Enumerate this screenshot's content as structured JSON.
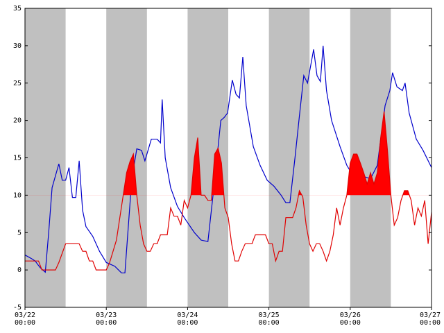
{
  "chart_data": {
    "type": "line",
    "xlim": [
      0,
      120
    ],
    "ylim": [
      -5,
      35
    ],
    "yticks": [
      -5,
      0,
      5,
      10,
      15,
      20,
      25,
      30,
      35
    ],
    "xticks": [
      {
        "value": 0,
        "label": "03/22 00:00"
      },
      {
        "value": 24,
        "label": "03/23 00:00"
      },
      {
        "value": 48,
        "label": "03/24 00:00"
      },
      {
        "value": 72,
        "label": "03/25 00:00"
      },
      {
        "value": 96,
        "label": "03/26 00:00"
      },
      {
        "value": 120,
        "label": "03/27 00:00"
      }
    ],
    "bands": [
      [
        0,
        12
      ],
      [
        24,
        36
      ],
      [
        48,
        60
      ],
      [
        72,
        84
      ],
      [
        96,
        108
      ]
    ],
    "band_color": "#c0c0c0",
    "fill_threshold": 10,
    "fill_color": "#ff0000",
    "series": [
      {
        "color": "#0000cc",
        "x": [
          0,
          2,
          3,
          4.5,
          6,
          7,
          8,
          10,
          11,
          12,
          13,
          14,
          15,
          16,
          17,
          18,
          20,
          22,
          24,
          26.5,
          28.5,
          29.5,
          31.5,
          33,
          34.4,
          35.4,
          37.3,
          39,
          40,
          40.5,
          41.4,
          43,
          45,
          47,
          50,
          52,
          54,
          56,
          57.8,
          58.8,
          59.8,
          61.2,
          62.3,
          63.3,
          64.3,
          65.3,
          67.4,
          69.4,
          71.5,
          73.5,
          75.6,
          77,
          78.2,
          79.7,
          81.1,
          82.3,
          83.4,
          85.2,
          86.2,
          87.2,
          88,
          89,
          90.5,
          93,
          95,
          97,
          99,
          100,
          102,
          104,
          106.3,
          107.7,
          108.5,
          109.8,
          111.4,
          112.2,
          113.4,
          115.5,
          117.5,
          120
        ],
        "values": [
          2,
          1.5,
          1.2,
          0.3,
          -0.3,
          5,
          11,
          14.2,
          12,
          12,
          13.7,
          9.7,
          9.7,
          14.6,
          8,
          5.8,
          4.5,
          2.5,
          1,
          0.5,
          -0.4,
          -0.4,
          12,
          16.2,
          16,
          14.6,
          17.5,
          17.5,
          17,
          22.8,
          15,
          11,
          8.5,
          7,
          5,
          4,
          3.8,
          12,
          20,
          20.4,
          21,
          25.4,
          23.5,
          23,
          28.5,
          22,
          16.5,
          14,
          12,
          11.2,
          10,
          9,
          9,
          15,
          21,
          26,
          25,
          29.5,
          26,
          25.2,
          30,
          24,
          20,
          16.5,
          14,
          12.5,
          12.2,
          12.5,
          12.2,
          14,
          22,
          24,
          26.4,
          24.5,
          24,
          25,
          21,
          17.5,
          16,
          13.7
        ]
      },
      {
        "color": "#e00000",
        "fill": true,
        "x": [
          0,
          4,
          5,
          9,
          10,
          12,
          16,
          17,
          18,
          19,
          20,
          21,
          24,
          25,
          27,
          28,
          29,
          30,
          31,
          32,
          33,
          34,
          35,
          36,
          37,
          38,
          39,
          40,
          42,
          43,
          44,
          45,
          46,
          47,
          48,
          49,
          50,
          51,
          52,
          53,
          54,
          55,
          56,
          57,
          58,
          59,
          60,
          61,
          62,
          63,
          64,
          65,
          67,
          68,
          71,
          72,
          73,
          74,
          75,
          76,
          77,
          79,
          80,
          81,
          82,
          83,
          84,
          85,
          86,
          87,
          88,
          89,
          90,
          91,
          92,
          93,
          94,
          95,
          96,
          97,
          98,
          99,
          100,
          101,
          102,
          103,
          104,
          105,
          106,
          107,
          108,
          109,
          110,
          111,
          112,
          113,
          114,
          115,
          116,
          117,
          118,
          119,
          120
        ],
        "values": [
          1.2,
          1.2,
          0,
          0,
          1,
          3.5,
          3.5,
          2.5,
          2.5,
          1.2,
          1.2,
          0,
          0,
          1,
          4,
          7,
          10,
          13,
          14.5,
          15.5,
          10,
          6,
          3.5,
          2.5,
          2.5,
          3.5,
          3.5,
          4.7,
          4.7,
          8.3,
          7.2,
          7.2,
          6,
          9.3,
          8.3,
          10,
          15,
          17.7,
          10,
          10,
          9.3,
          9.3,
          15.5,
          16.3,
          14.3,
          8.3,
          7,
          3.5,
          1.2,
          1.2,
          2.5,
          3.5,
          3.5,
          4.7,
          4.7,
          3.5,
          3.5,
          1.2,
          2.5,
          2.5,
          7,
          7,
          8.3,
          10.6,
          9.8,
          6,
          3.5,
          2.5,
          3.5,
          3.5,
          2.5,
          1.2,
          2.5,
          4.7,
          8.3,
          6,
          8.3,
          10,
          14.3,
          15.5,
          15.5,
          14.3,
          13,
          11.5,
          13,
          11.5,
          13,
          17.7,
          21.2,
          16,
          10,
          6,
          7,
          9.3,
          10.6,
          10.6,
          9.3,
          6,
          8.3,
          7.2,
          9.3,
          3.5,
          7.7
        ]
      }
    ]
  }
}
